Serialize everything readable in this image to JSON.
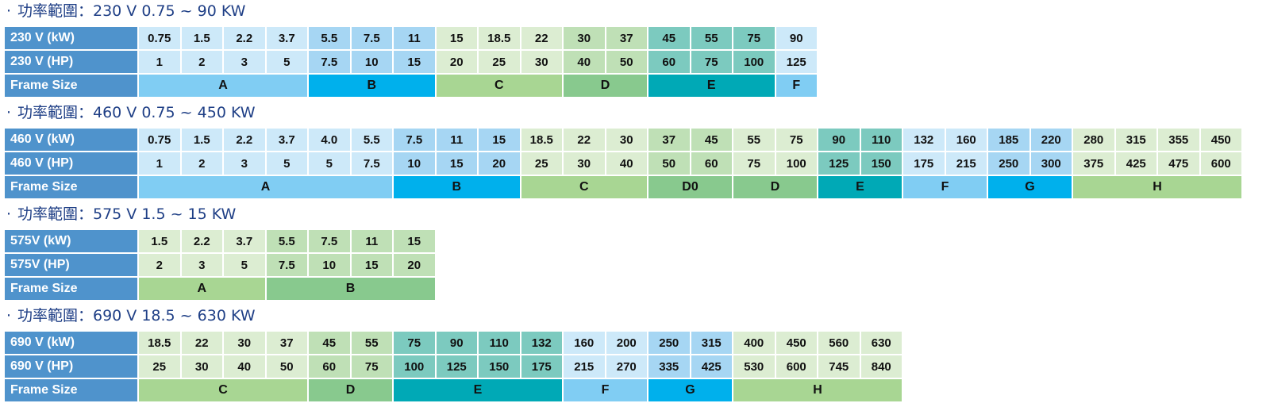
{
  "sections": [
    {
      "heading": "功率範圍：230 V 0.75 ~ 90 KW",
      "rows": [
        {
          "label": "230 V (kW)",
          "values": [
            "0.75",
            "1.5",
            "2.2",
            "3.7",
            "5.5",
            "7.5",
            "11",
            "15",
            "18.5",
            "22",
            "30",
            "37",
            "45",
            "55",
            "75",
            "90"
          ]
        },
        {
          "label": "230 V (HP)",
          "values": [
            "1",
            "2",
            "3",
            "5",
            "7.5",
            "10",
            "15",
            "20",
            "25",
            "30",
            "40",
            "50",
            "60",
            "75",
            "100",
            "125"
          ]
        }
      ],
      "frame_label": "Frame Size",
      "frames": [
        {
          "name": "A",
          "span": 4
        },
        {
          "name": "B",
          "span": 3
        },
        {
          "name": "C",
          "span": 3
        },
        {
          "name": "D",
          "span": 2
        },
        {
          "name": "E",
          "span": 3
        },
        {
          "name": "F",
          "span": 1
        }
      ]
    },
    {
      "heading": "功率範圍：460 V 0.75 ~ 450 KW",
      "rows": [
        {
          "label": "460 V (kW)",
          "values": [
            "0.75",
            "1.5",
            "2.2",
            "3.7",
            "4.0",
            "5.5",
            "7.5",
            "11",
            "15",
            "18.5",
            "22",
            "30",
            "37",
            "45",
            "55",
            "75",
            "90",
            "110",
            "132",
            "160",
            "185",
            "220",
            "280",
            "315",
            "355",
            "450"
          ]
        },
        {
          "label": "460 V (HP)",
          "values": [
            "1",
            "2",
            "3",
            "5",
            "5",
            "7.5",
            "10",
            "15",
            "20",
            "25",
            "30",
            "40",
            "50",
            "60",
            "75",
            "100",
            "125",
            "150",
            "175",
            "215",
            "250",
            "300",
            "375",
            "425",
            "475",
            "600"
          ]
        }
      ],
      "frame_label": "Frame Size",
      "frames": [
        {
          "name": "A",
          "span": 6
        },
        {
          "name": "B",
          "span": 3
        },
        {
          "name": "C",
          "span": 3
        },
        {
          "name": "D0",
          "span": 2
        },
        {
          "name": "D",
          "span": 2
        },
        {
          "name": "E",
          "span": 2
        },
        {
          "name": "F",
          "span": 2
        },
        {
          "name": "G",
          "span": 2
        },
        {
          "name": "H",
          "span": 4
        }
      ]
    },
    {
      "heading": "功率範圍：575 V 1.5 ~ 15 KW",
      "rows": [
        {
          "label": "575V (kW)",
          "values": [
            "1.5",
            "2.2",
            "3.7",
            "5.5",
            "7.5",
            "11",
            "15"
          ]
        },
        {
          "label": "575V (HP)",
          "values": [
            "2",
            "3",
            "5",
            "7.5",
            "10",
            "15",
            "20"
          ]
        }
      ],
      "frame_label": "Frame Size",
      "frames": [
        {
          "name": "A",
          "span": 3
        },
        {
          "name": "B",
          "span": 4
        }
      ]
    },
    {
      "heading": "功率範圍：690 V 18.5 ~ 630 KW",
      "rows": [
        {
          "label": "690 V (kW)",
          "values": [
            "18.5",
            "22",
            "30",
            "37",
            "45",
            "55",
            "75",
            "90",
            "110",
            "132",
            "160",
            "200",
            "250",
            "315",
            "400",
            "450",
            "560",
            "630"
          ]
        },
        {
          "label": "690 V (HP)",
          "values": [
            "25",
            "30",
            "40",
            "50",
            "60",
            "75",
            "100",
            "125",
            "150",
            "175",
            "215",
            "270",
            "335",
            "425",
            "530",
            "600",
            "745",
            "840"
          ]
        }
      ],
      "frame_label": "Frame Size",
      "frames": [
        {
          "name": "C",
          "span": 4
        },
        {
          "name": "D",
          "span": 2
        },
        {
          "name": "E",
          "span": 4
        },
        {
          "name": "F",
          "span": 2
        },
        {
          "name": "G",
          "span": 2
        },
        {
          "name": "H",
          "span": 4
        }
      ]
    }
  ],
  "colors": {
    "header": "#4f93cc",
    "heading_text": "#1f3f86",
    "cell_blue1": "#cde9f9",
    "cell_blue2": "#a6d6f3",
    "cell_green1": "#dcedd2",
    "cell_green2": "#bfe0b6",
    "cell_teal": "#7ccabf",
    "frame_blue1": "#80cdf3",
    "frame_blue2": "#00b0ec",
    "frame_green1": "#a8d693",
    "frame_green2": "#88c98e",
    "frame_teal": "#00a9b6"
  }
}
